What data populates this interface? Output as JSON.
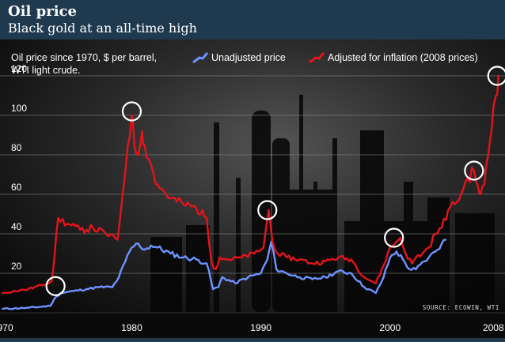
{
  "header": {
    "title": "Oil price",
    "subtitle": "Black gold at an all-time high"
  },
  "colors": {
    "header_bg": "#1f3a4f",
    "unadjusted": "#6f93ff",
    "adjusted": "#e3141b",
    "highlight": "#ffffff",
    "axis_text": "#ffffff",
    "gridline": "#8a8a8a"
  },
  "chart_data": {
    "type": "line",
    "title": "Oil price since 1970, $ per barrel, WTI light crude.",
    "subtitle_lines": [
      "Oil price since 1970, $ per barrel,",
      "WTI light crude."
    ],
    "source": "SOURCE: ECOWIN, WTI",
    "xlabel": "",
    "ylabel": "$ per barrel",
    "xlim": [
      1969.8,
      2008.9
    ],
    "ylim": [
      0,
      128
    ],
    "x_ticks": [
      1970,
      1980,
      1990,
      2000,
      2008
    ],
    "y_ticks": [
      20,
      40,
      60,
      80,
      100,
      120
    ],
    "grid": true,
    "legend": {
      "position": "top-right"
    },
    "series": [
      {
        "name": "Unadjusted price",
        "key": "unadjusted",
        "x": [
          1970.0,
          1972.0,
          1973.7,
          1974.0,
          1974.5,
          1975.5,
          1976.5,
          1977.5,
          1978.5,
          1979.0,
          1979.5,
          1980.0,
          1980.5,
          1981.0,
          1981.5,
          1982.0,
          1983.0,
          1984.0,
          1985.0,
          1985.8,
          1986.3,
          1986.7,
          1987.0,
          1988.0,
          1989.0,
          1990.0,
          1990.5,
          1990.8,
          1991.2,
          1992.0,
          1993.0,
          1994.0,
          1995.0,
          1996.0,
          1997.0,
          1998.0,
          1998.9,
          1999.5,
          2000.0,
          2000.5,
          2001.0,
          2001.5,
          2002.0,
          2003.0,
          2003.5,
          2004.0,
          2004.3
        ],
        "y": [
          2,
          2.5,
          3.5,
          7,
          10,
          11,
          12,
          13,
          13,
          18,
          26,
          33,
          35,
          32,
          34,
          33,
          30,
          28,
          27,
          25,
          12,
          13,
          18,
          15,
          18,
          20,
          27,
          36,
          22,
          20,
          18,
          17,
          18,
          21,
          20,
          13,
          10,
          18,
          28,
          31,
          27,
          22,
          22,
          28,
          31,
          35,
          37
        ]
      },
      {
        "name": "Adjusted for inflation (2008 prices)",
        "key": "adjusted",
        "x": [
          1970.0,
          1971.0,
          1972.0,
          1973.0,
          1973.8,
          1974.0,
          1974.3,
          1975.0,
          1976.0,
          1977.0,
          1978.0,
          1978.9,
          1979.3,
          1979.7,
          1980.0,
          1980.2,
          1980.5,
          1980.8,
          1981.0,
          1981.3,
          1981.7,
          1982.0,
          1983.0,
          1984.0,
          1985.0,
          1985.8,
          1986.2,
          1986.5,
          1986.8,
          1987.5,
          1988.5,
          1989.5,
          1990.2,
          1990.6,
          1990.9,
          1991.3,
          1992.0,
          1993.0,
          1994.0,
          1995.0,
          1996.0,
          1997.0,
          1998.0,
          1998.9,
          1999.5,
          2000.0,
          2000.5,
          2000.8,
          2001.2,
          2001.7,
          2002.0,
          2002.5,
          2003.0,
          2003.5,
          2004.0,
          2004.5,
          2005.0,
          2005.5,
          2006.0,
          2006.5,
          2006.8,
          2007.0,
          2007.3,
          2007.6,
          2007.8,
          2008.0,
          2008.2,
          2008.4
        ],
        "y": [
          10,
          11,
          12,
          14,
          16,
          27,
          48,
          45,
          42,
          43,
          40,
          37,
          60,
          85,
          100,
          85,
          80,
          92,
          85,
          78,
          70,
          65,
          58,
          55,
          53,
          48,
          25,
          22,
          28,
          27,
          28,
          30,
          33,
          52,
          36,
          30,
          28,
          27,
          25,
          26,
          28,
          27,
          18,
          15,
          24,
          33,
          36,
          38,
          30,
          25,
          28,
          30,
          33,
          40,
          43,
          52,
          55,
          60,
          68,
          72,
          64,
          60,
          65,
          80,
          90,
          104,
          110,
          120
        ]
      }
    ],
    "highlights": [
      {
        "series": "unadjusted",
        "x": 1974.1,
        "y": 13.5
      },
      {
        "series": "adjusted",
        "x": 1980.0,
        "y": 102
      },
      {
        "series": "adjusted",
        "x": 1990.5,
        "y": 52
      },
      {
        "series": "adjusted",
        "x": 2000.3,
        "y": 38
      },
      {
        "series": "adjusted",
        "x": 2006.5,
        "y": 72
      },
      {
        "series": "adjusted",
        "x": 2008.3,
        "y": 120
      }
    ]
  }
}
